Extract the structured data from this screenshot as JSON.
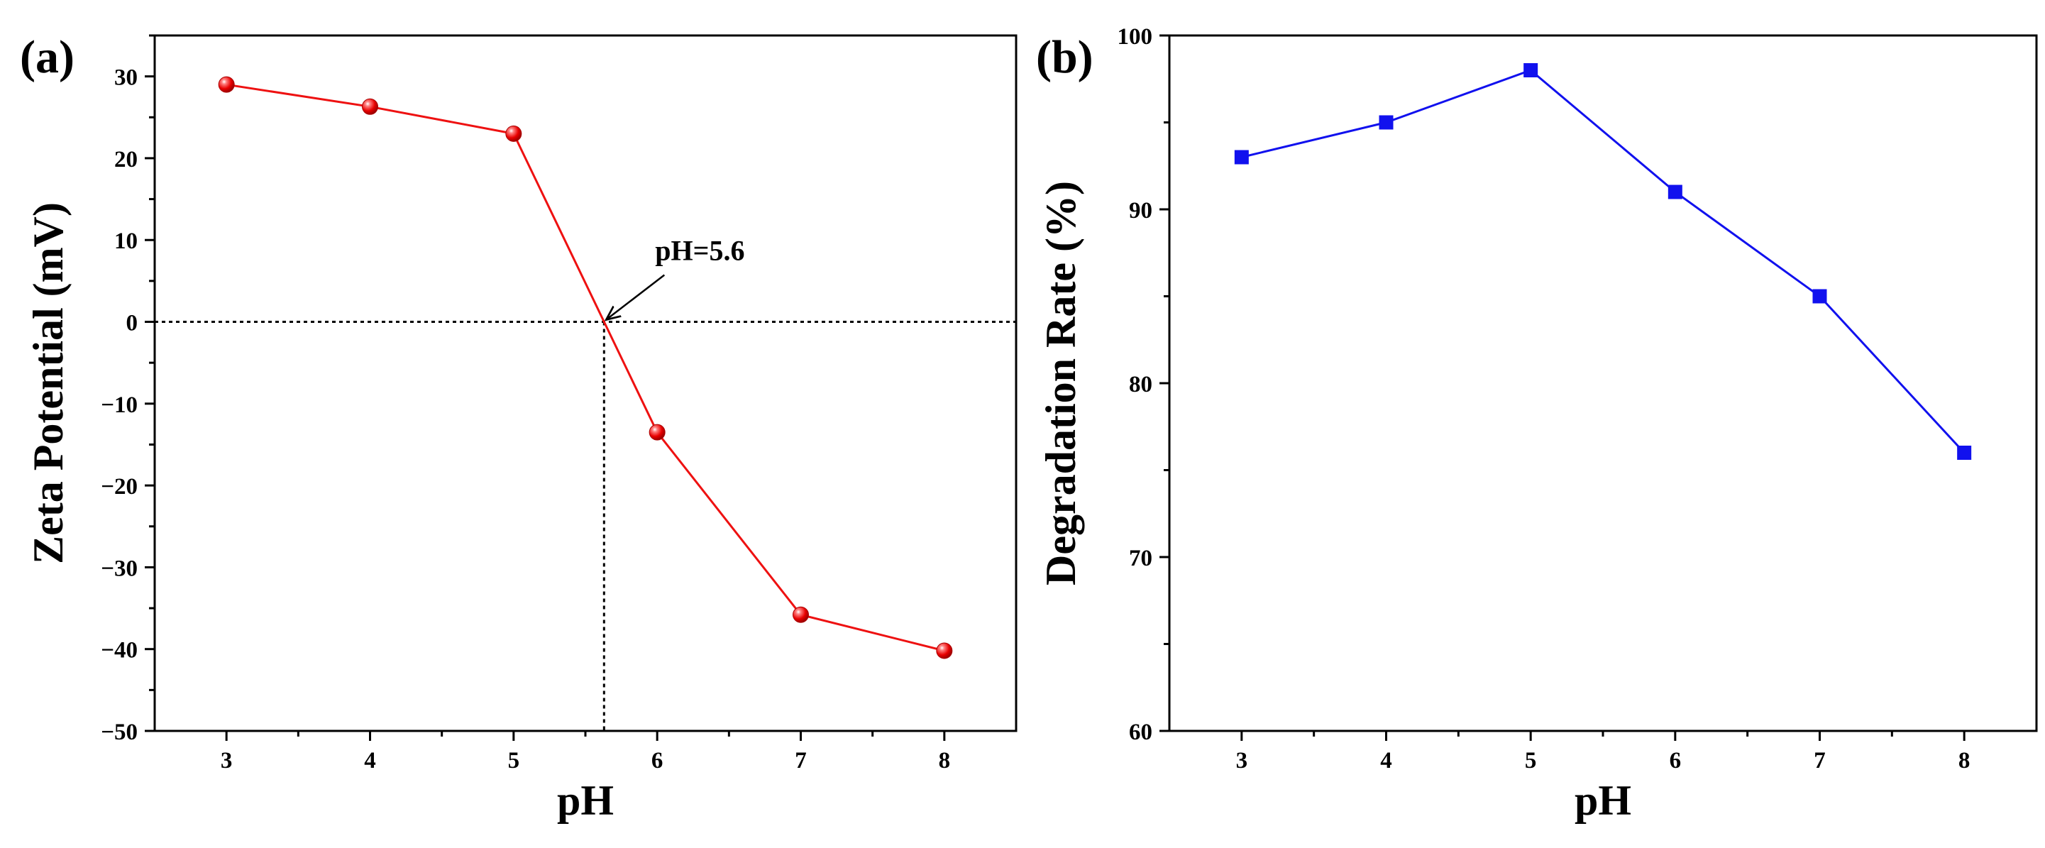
{
  "chart_data": [
    {
      "type": "line",
      "panel_label": "(a)",
      "title": "",
      "xlabel": "pH",
      "ylabel": "Zeta Potential (mV)",
      "xlim": [
        2.5,
        8.5
      ],
      "ylim": [
        -50,
        35
      ],
      "xticks": [
        3,
        4,
        5,
        6,
        7,
        8
      ],
      "yticks": [
        -50,
        -40,
        -30,
        -20,
        -10,
        0,
        10,
        20,
        30
      ],
      "ytick_labels": [
        "−50",
        "−40",
        "−30",
        "−20",
        "−10",
        "0",
        "10",
        "20",
        "30"
      ],
      "series": [
        {
          "name": "Zeta Potential",
          "color": "#ee1111",
          "marker": "sphere",
          "x": [
            3,
            4,
            5,
            6,
            7,
            8
          ],
          "y": [
            29,
            26.3,
            23,
            -13.5,
            -35.8,
            -40.2
          ]
        }
      ],
      "reference_lines": {
        "horizontal_y": 0,
        "vertical_x": 5.63
      },
      "annotation": {
        "text": "pH=5.6",
        "x": 5.63,
        "y": 0
      }
    },
    {
      "type": "line",
      "panel_label": "(b)",
      "title": "",
      "xlabel": "pH",
      "ylabel": "Degradation Rate (%)",
      "xlim": [
        2.5,
        8.5
      ],
      "ylim": [
        60,
        100
      ],
      "xticks": [
        3,
        4,
        5,
        6,
        7,
        8
      ],
      "yticks": [
        60,
        70,
        80,
        90,
        100
      ],
      "ytick_labels": [
        "60",
        "70",
        "80",
        "90",
        "100"
      ],
      "series": [
        {
          "name": "Degradation Rate",
          "color": "#1111ee",
          "marker": "square",
          "x": [
            3,
            4,
            5,
            6,
            7,
            8
          ],
          "y": [
            93,
            95,
            98,
            91,
            85,
            76
          ]
        }
      ]
    }
  ]
}
